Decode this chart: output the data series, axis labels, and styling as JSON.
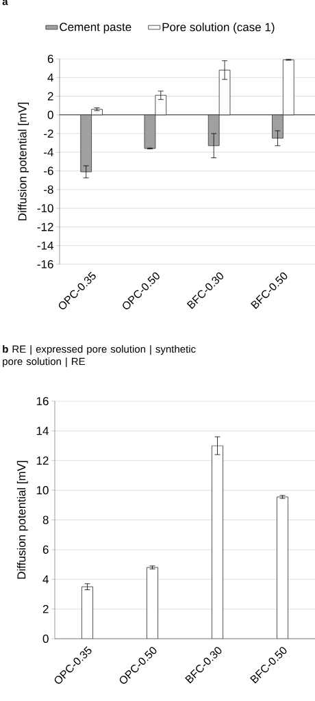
{
  "chart_data": [
    {
      "type": "bar",
      "title": "**a**",
      "ylabel": "Diffusion potential [mV]",
      "categories": [
        "OPC-0.35",
        "OPC-0.50",
        "BFC-0.30",
        "BFC-0.50"
      ],
      "series": [
        {
          "name": "Cement paste",
          "color": "#a0a0a0",
          "values": [
            -6.1,
            -3.6,
            -3.3,
            -2.5
          ],
          "errors": [
            0.65,
            0.05,
            1.3,
            0.8
          ]
        },
        {
          "name": "Pore solution (case 1)",
          "color": "#ffffff",
          "values": [
            0.6,
            2.1,
            4.8,
            5.9
          ],
          "errors": [
            0.15,
            0.45,
            1.0,
            0.05
          ]
        }
      ],
      "ylim": [
        -16,
        6
      ],
      "yticks": [
        -16,
        -14,
        -12,
        -10,
        -8,
        -6,
        -4,
        -2,
        0,
        2,
        4,
        6
      ],
      "grid": "y",
      "legend": "top"
    },
    {
      "type": "bar",
      "title": "**b** RE | expressed pore solution | synthetic pore solution | RE",
      "ylabel": "Diffusion potential [mV]",
      "categories": [
        "OPC-0.35",
        "OPC-0.50",
        "BFC-0.30",
        "BFC-0.50"
      ],
      "series": [
        {
          "color": "#ffffff",
          "values": [
            3.5,
            4.8,
            13.0,
            9.55
          ],
          "errors": [
            0.2,
            0.1,
            0.6,
            0.1
          ]
        }
      ],
      "ylim": [
        0,
        16
      ],
      "yticks": [
        0,
        2,
        4,
        6,
        8,
        10,
        12,
        14,
        16
      ],
      "grid": "y"
    }
  ]
}
